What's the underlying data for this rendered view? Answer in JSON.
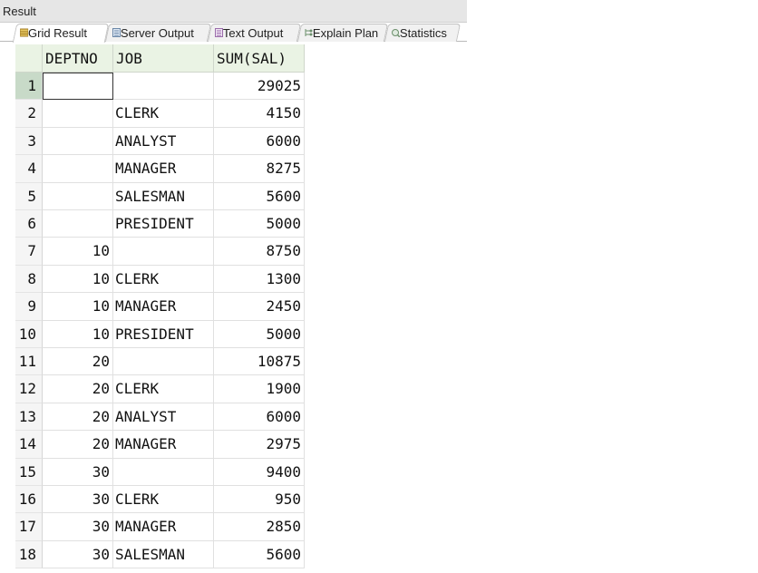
{
  "panel": {
    "title": "Result"
  },
  "tabs": [
    {
      "label": "Grid Result",
      "icon": "grid-result-icon",
      "active": true
    },
    {
      "label": "Server Output",
      "icon": "server-output-icon",
      "active": false
    },
    {
      "label": "Text Output",
      "icon": "text-output-icon",
      "active": false
    },
    {
      "label": "Explain Plan",
      "icon": "explain-plan-icon",
      "active": false
    },
    {
      "label": "Statistics",
      "icon": "statistics-icon",
      "active": false
    }
  ],
  "grid": {
    "columns": [
      "DEPTNO",
      "JOB",
      "SUM(SAL)"
    ],
    "selected_row": 1,
    "rows": [
      {
        "n": "1",
        "deptno": "",
        "job": "",
        "sum": "29025"
      },
      {
        "n": "2",
        "deptno": "",
        "job": "CLERK",
        "sum": "4150"
      },
      {
        "n": "3",
        "deptno": "",
        "job": "ANALYST",
        "sum": "6000"
      },
      {
        "n": "4",
        "deptno": "",
        "job": "MANAGER",
        "sum": "8275"
      },
      {
        "n": "5",
        "deptno": "",
        "job": "SALESMAN",
        "sum": "5600"
      },
      {
        "n": "6",
        "deptno": "",
        "job": "PRESIDENT",
        "sum": "5000"
      },
      {
        "n": "7",
        "deptno": "10",
        "job": "",
        "sum": "8750"
      },
      {
        "n": "8",
        "deptno": "10",
        "job": "CLERK",
        "sum": "1300"
      },
      {
        "n": "9",
        "deptno": "10",
        "job": "MANAGER",
        "sum": "2450"
      },
      {
        "n": "10",
        "deptno": "10",
        "job": "PRESIDENT",
        "sum": "5000"
      },
      {
        "n": "11",
        "deptno": "20",
        "job": "",
        "sum": "10875"
      },
      {
        "n": "12",
        "deptno": "20",
        "job": "CLERK",
        "sum": "1900"
      },
      {
        "n": "13",
        "deptno": "20",
        "job": "ANALYST",
        "sum": "6000"
      },
      {
        "n": "14",
        "deptno": "20",
        "job": "MANAGER",
        "sum": "2975"
      },
      {
        "n": "15",
        "deptno": "30",
        "job": "",
        "sum": "9400"
      },
      {
        "n": "16",
        "deptno": "30",
        "job": "CLERK",
        "sum": "950"
      },
      {
        "n": "17",
        "deptno": "30",
        "job": "MANAGER",
        "sum": "2850"
      },
      {
        "n": "18",
        "deptno": "30",
        "job": "SALESMAN",
        "sum": "5600"
      }
    ]
  }
}
